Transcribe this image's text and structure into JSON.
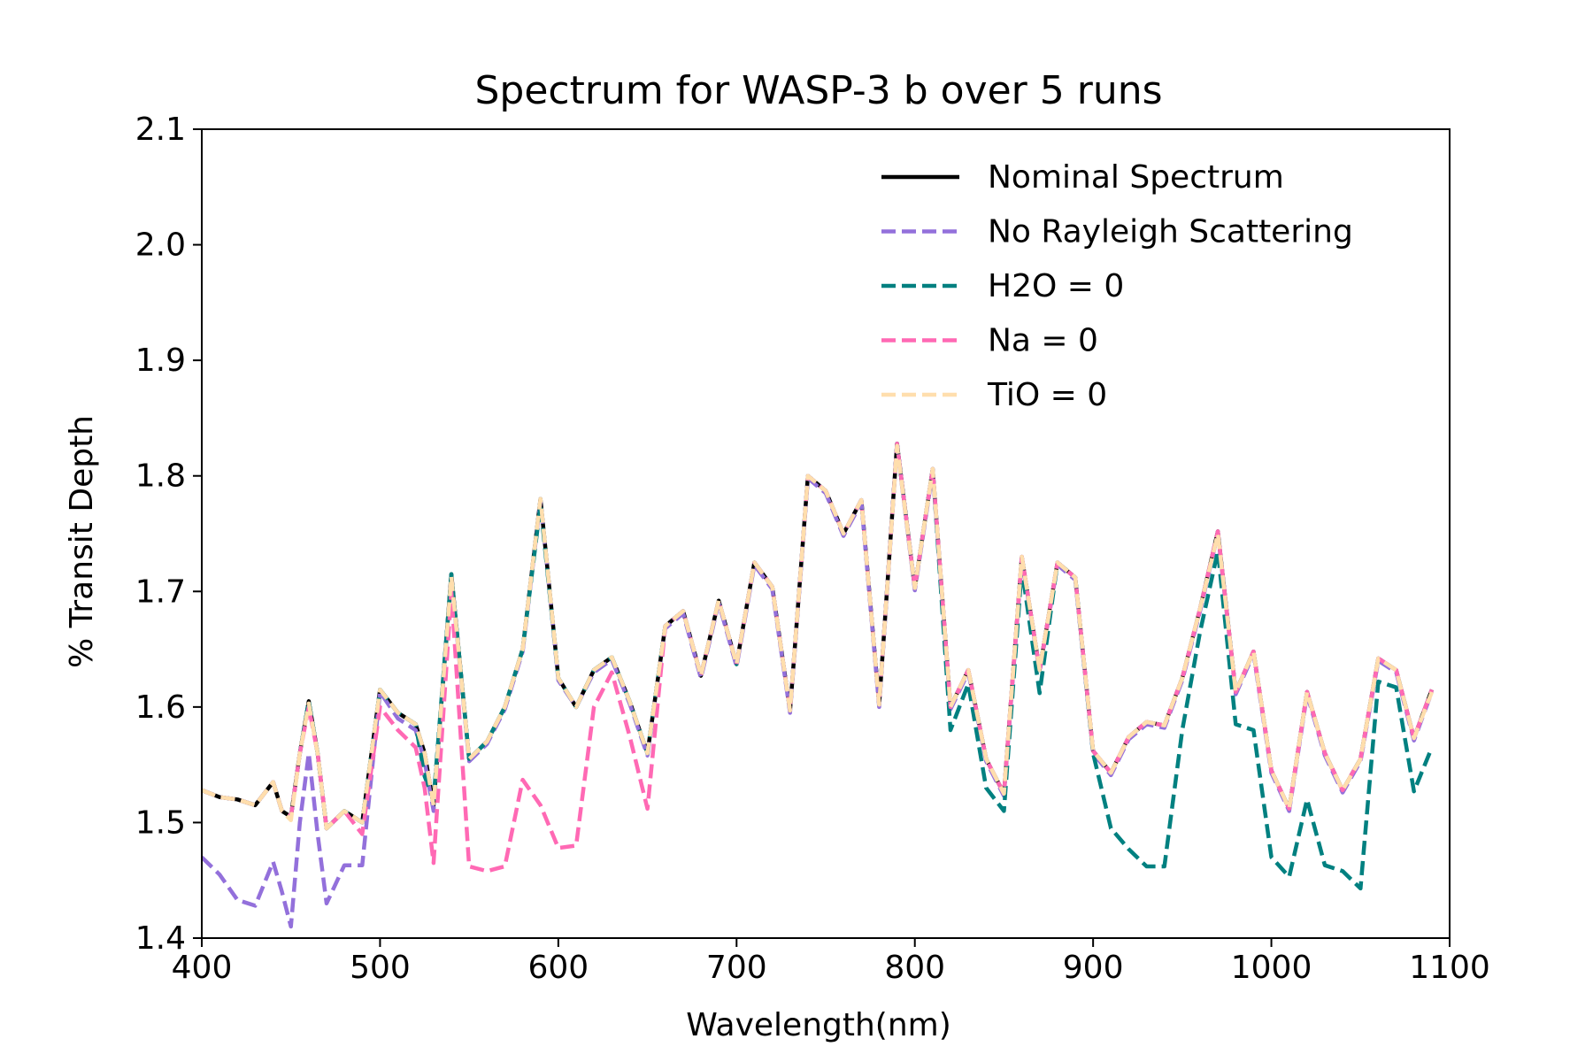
{
  "chart_data": {
    "type": "line",
    "title": "Spectrum for WASP-3 b over 5 runs",
    "xlabel": "Wavelength(nm)",
    "ylabel": "% Transit Depth",
    "xlim": [
      400,
      1100
    ],
    "ylim": [
      1.4,
      2.1
    ],
    "xticks": [
      "400",
      "500",
      "600",
      "700",
      "800",
      "900",
      "1000",
      "1100"
    ],
    "yticks": [
      "1.4",
      "1.5",
      "1.6",
      "1.7",
      "1.8",
      "1.9",
      "2.0",
      "2.1"
    ],
    "grid": false,
    "legend_position": "top-right",
    "x": [
      400,
      410,
      420,
      430,
      440,
      445,
      450,
      455,
      460,
      465,
      470,
      480,
      490,
      500,
      510,
      520,
      525,
      530,
      540,
      550,
      560,
      570,
      580,
      590,
      600,
      610,
      620,
      630,
      640,
      650,
      660,
      670,
      680,
      690,
      700,
      710,
      720,
      730,
      740,
      750,
      760,
      770,
      780,
      790,
      800,
      810,
      820,
      830,
      840,
      850,
      860,
      870,
      880,
      890,
      900,
      910,
      920,
      930,
      940,
      950,
      960,
      970,
      980,
      990,
      1000,
      1010,
      1020,
      1030,
      1040,
      1050,
      1060,
      1070,
      1080,
      1090
    ],
    "series": [
      {
        "name": "Nominal Spectrum",
        "color": "#000000",
        "dashed": false,
        "values": [
          1.528,
          1.522,
          1.52,
          1.515,
          1.535,
          1.51,
          1.505,
          1.56,
          1.605,
          1.56,
          1.495,
          1.51,
          1.5,
          1.615,
          1.595,
          1.585,
          1.56,
          1.515,
          1.715,
          1.555,
          1.57,
          1.6,
          1.65,
          1.78,
          1.625,
          1.6,
          1.632,
          1.643,
          1.605,
          1.56,
          1.67,
          1.683,
          1.627,
          1.692,
          1.637,
          1.725,
          1.704,
          1.597,
          1.8,
          1.787,
          1.75,
          1.779,
          1.602,
          1.828,
          1.703,
          1.806,
          1.6,
          1.632,
          1.555,
          1.525,
          1.73,
          1.632,
          1.725,
          1.712,
          1.562,
          1.543,
          1.574,
          1.587,
          1.584,
          1.625,
          1.685,
          1.752,
          1.613,
          1.648,
          1.545,
          1.512,
          1.613,
          1.56,
          1.528,
          1.555,
          1.642,
          1.632,
          1.573,
          1.615
        ]
      },
      {
        "name": "No Rayleigh Scattering",
        "color": "#9370db",
        "dashed": true,
        "values": [
          1.47,
          1.455,
          1.433,
          1.428,
          1.466,
          1.44,
          1.41,
          1.5,
          1.56,
          1.49,
          1.43,
          1.463,
          1.463,
          1.613,
          1.59,
          1.58,
          1.553,
          1.51,
          1.712,
          1.553,
          1.568,
          1.598,
          1.648,
          1.778,
          1.623,
          1.6,
          1.63,
          1.641,
          1.603,
          1.558,
          1.668,
          1.681,
          1.625,
          1.69,
          1.635,
          1.723,
          1.702,
          1.595,
          1.798,
          1.785,
          1.748,
          1.777,
          1.6,
          1.826,
          1.701,
          1.804,
          1.598,
          1.63,
          1.553,
          1.523,
          1.728,
          1.63,
          1.723,
          1.71,
          1.56,
          1.541,
          1.572,
          1.585,
          1.582,
          1.623,
          1.683,
          1.75,
          1.611,
          1.646,
          1.543,
          1.51,
          1.611,
          1.558,
          1.526,
          1.553,
          1.64,
          1.63,
          1.571,
          1.613
        ]
      },
      {
        "name": "H2O = 0",
        "color": "#008080",
        "dashed": true,
        "values": [
          1.528,
          1.522,
          1.52,
          1.515,
          1.535,
          1.51,
          1.505,
          1.56,
          1.605,
          1.56,
          1.495,
          1.51,
          1.5,
          1.615,
          1.595,
          1.585,
          1.54,
          1.52,
          1.715,
          1.555,
          1.57,
          1.6,
          1.65,
          1.775,
          1.625,
          1.6,
          1.632,
          1.643,
          1.605,
          1.56,
          1.67,
          1.683,
          1.627,
          1.692,
          1.637,
          1.725,
          1.704,
          1.597,
          1.8,
          1.787,
          1.75,
          1.779,
          1.602,
          1.828,
          1.703,
          1.806,
          1.58,
          1.62,
          1.53,
          1.51,
          1.72,
          1.612,
          1.725,
          1.712,
          1.56,
          1.495,
          1.477,
          1.462,
          1.462,
          1.58,
          1.665,
          1.735,
          1.585,
          1.58,
          1.47,
          1.453,
          1.52,
          1.463,
          1.458,
          1.443,
          1.622,
          1.617,
          1.527,
          1.565
        ]
      },
      {
        "name": "Na = 0",
        "color": "#ff69b4",
        "dashed": true,
        "values": [
          1.528,
          1.522,
          1.52,
          1.515,
          1.535,
          1.51,
          1.505,
          1.56,
          1.6,
          1.56,
          1.495,
          1.51,
          1.49,
          1.6,
          1.58,
          1.565,
          1.53,
          1.465,
          1.7,
          1.462,
          1.458,
          1.462,
          1.537,
          1.515,
          1.478,
          1.48,
          1.6,
          1.63,
          1.575,
          1.512,
          1.67,
          1.683,
          1.627,
          1.692,
          1.637,
          1.725,
          1.704,
          1.597,
          1.8,
          1.787,
          1.75,
          1.779,
          1.602,
          1.828,
          1.703,
          1.806,
          1.6,
          1.632,
          1.555,
          1.525,
          1.73,
          1.632,
          1.725,
          1.712,
          1.562,
          1.543,
          1.574,
          1.587,
          1.584,
          1.625,
          1.685,
          1.752,
          1.613,
          1.648,
          1.545,
          1.512,
          1.613,
          1.56,
          1.528,
          1.555,
          1.642,
          1.632,
          1.573,
          1.615
        ]
      },
      {
        "name": "TiO = 0",
        "color": "#ffdead",
        "dashed": true,
        "values": [
          1.528,
          1.522,
          1.52,
          1.515,
          1.535,
          1.51,
          1.502,
          1.56,
          1.603,
          1.56,
          1.495,
          1.51,
          1.5,
          1.615,
          1.595,
          1.585,
          1.56,
          1.515,
          1.713,
          1.555,
          1.57,
          1.6,
          1.65,
          1.78,
          1.625,
          1.6,
          1.632,
          1.643,
          1.605,
          1.56,
          1.67,
          1.683,
          1.627,
          1.692,
          1.637,
          1.725,
          1.704,
          1.597,
          1.8,
          1.787,
          1.75,
          1.779,
          1.602,
          1.826,
          1.703,
          1.806,
          1.6,
          1.632,
          1.555,
          1.525,
          1.73,
          1.632,
          1.725,
          1.712,
          1.562,
          1.543,
          1.574,
          1.587,
          1.584,
          1.625,
          1.685,
          1.75,
          1.613,
          1.648,
          1.545,
          1.512,
          1.613,
          1.56,
          1.528,
          1.555,
          1.642,
          1.632,
          1.573,
          1.613
        ]
      }
    ]
  }
}
